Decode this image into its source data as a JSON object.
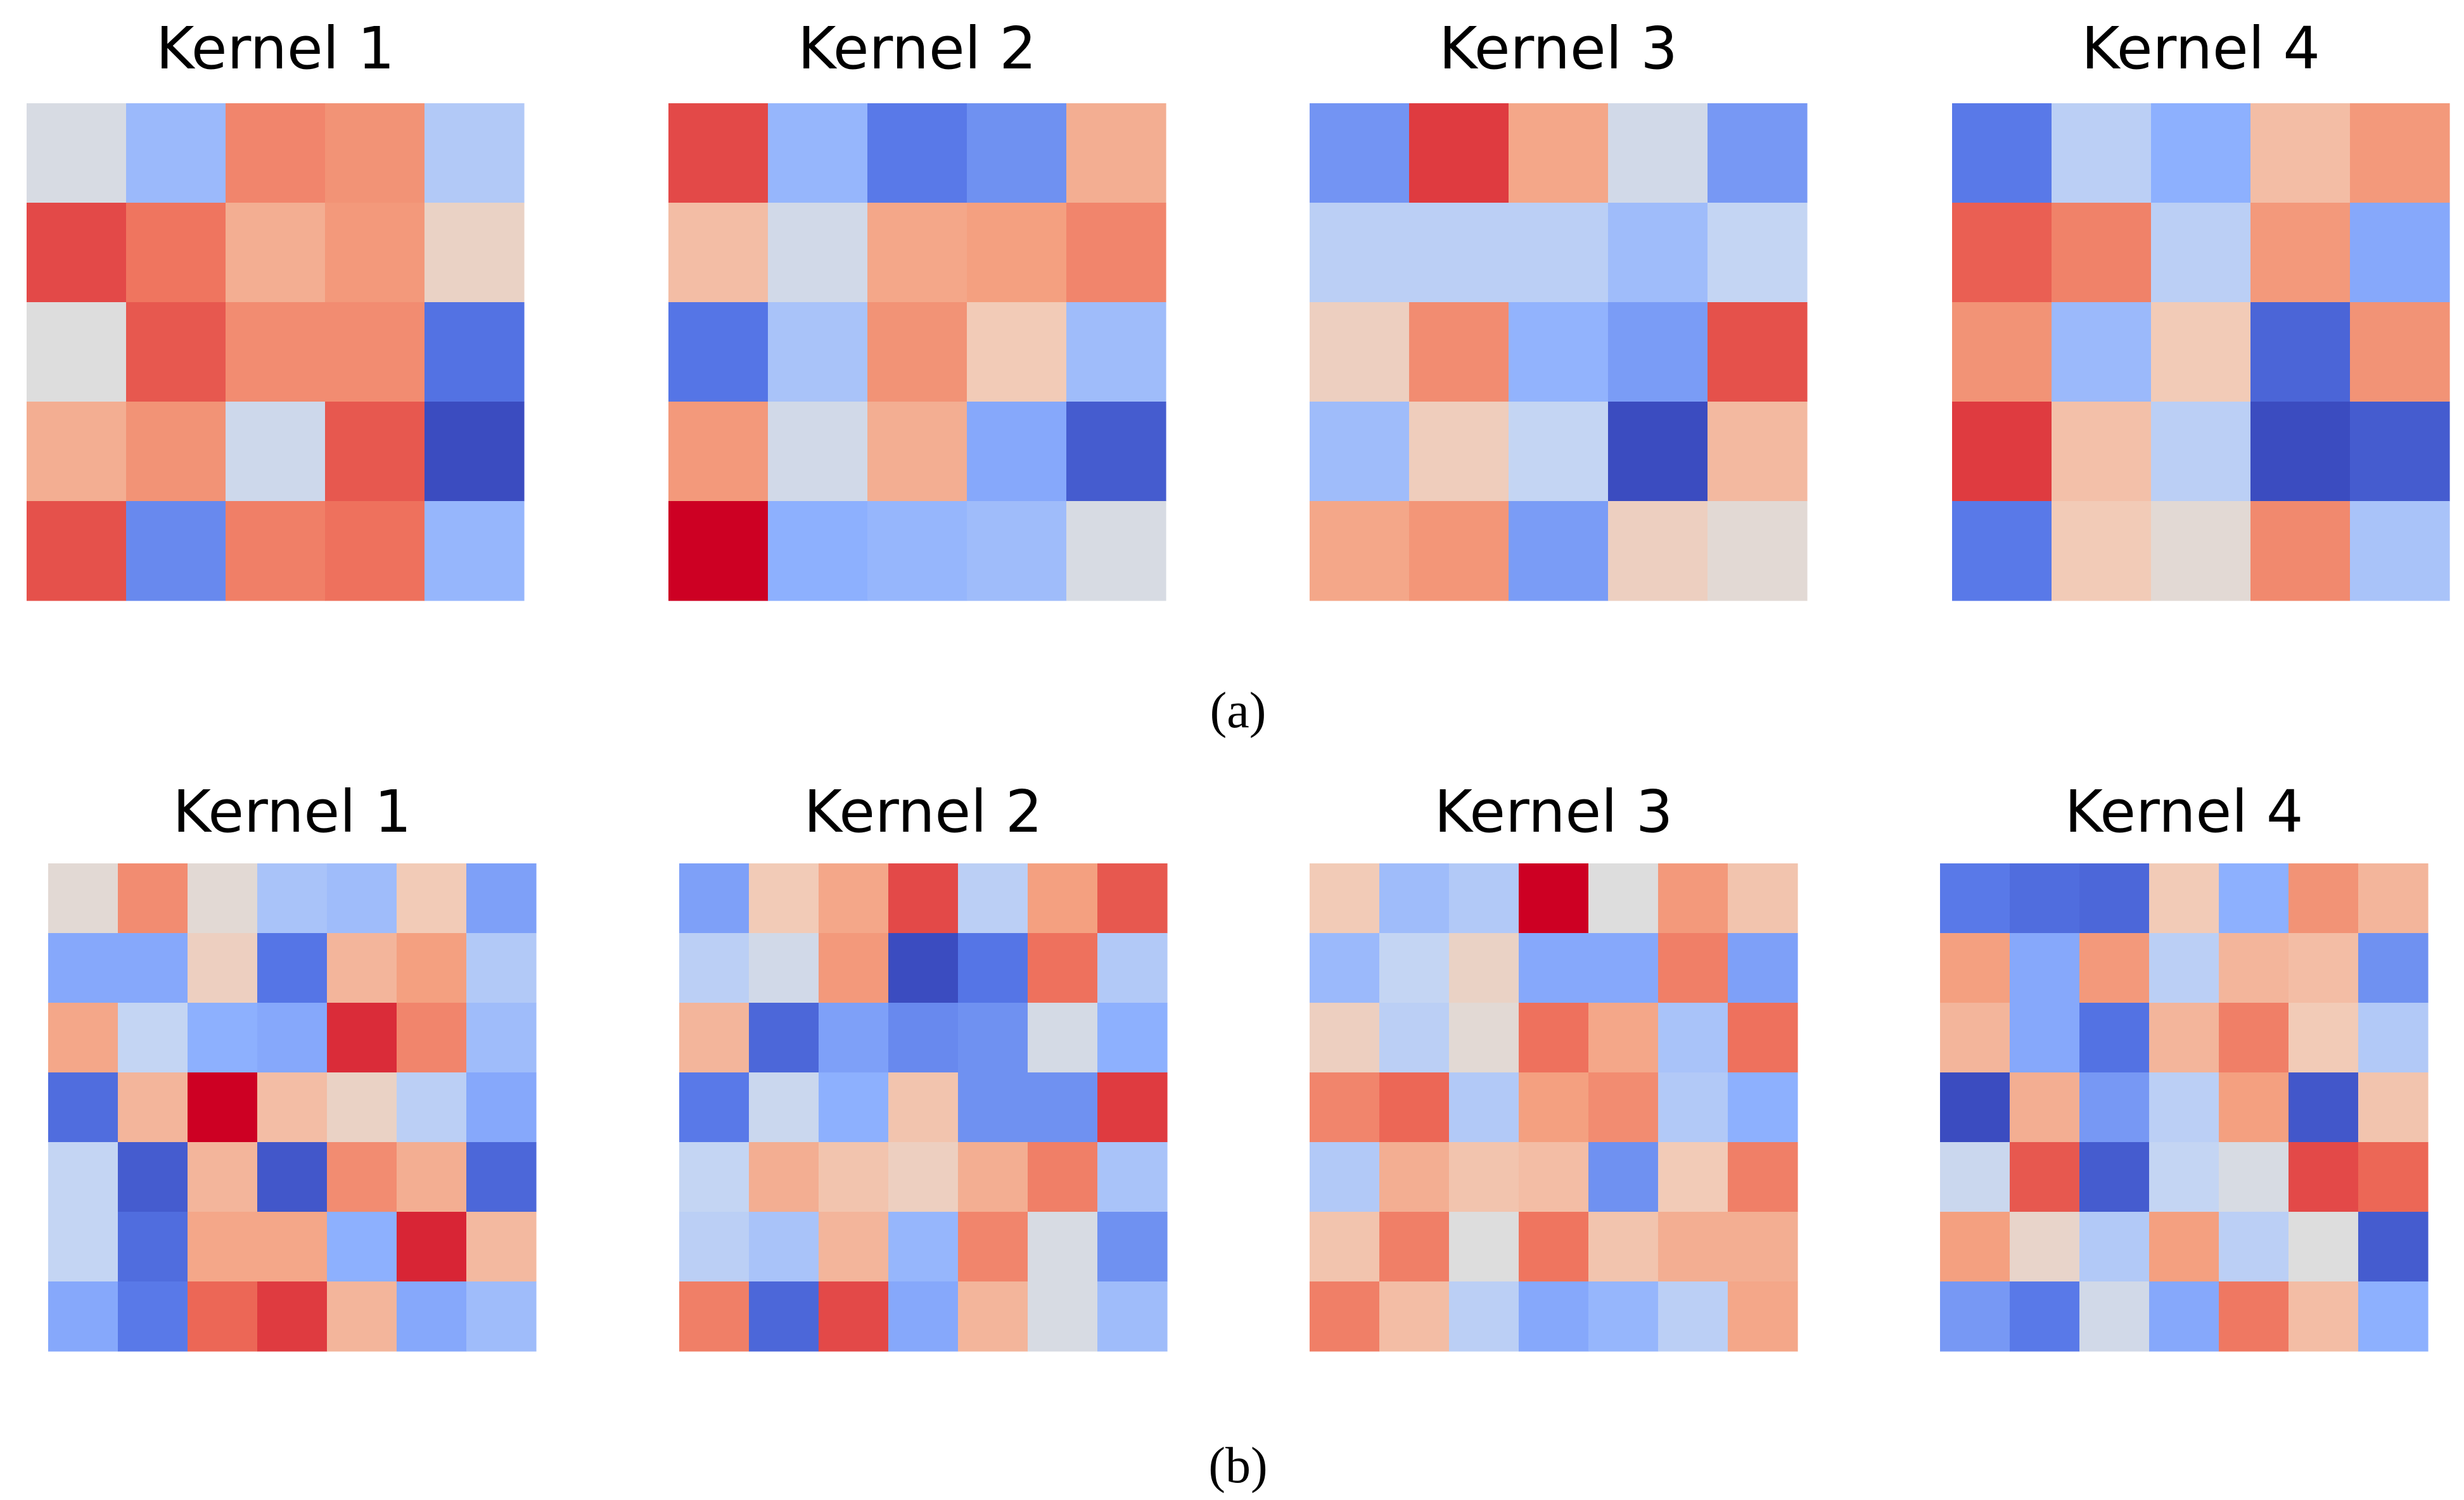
{
  "captions": [
    "(a)",
    "(b)"
  ],
  "chart_data": [
    {
      "type": "heatmap",
      "panel": "(a)",
      "grid_size": 5,
      "colormap": "coolwarm",
      "value_range": [
        0,
        1
      ],
      "kernels": [
        {
          "title": "Kernel 1",
          "values": [
            [
              0.48,
              0.33,
              0.78,
              0.74,
              0.38
            ],
            [
              0.9,
              0.83,
              0.66,
              0.72,
              0.55
            ],
            [
              0.5,
              0.88,
              0.76,
              0.76,
              0.14
            ],
            [
              0.66,
              0.74,
              0.45,
              0.88,
              0.0
            ],
            [
              0.89,
              0.2,
              0.8,
              0.84,
              0.32
            ]
          ]
        },
        {
          "title": "Kernel 2",
          "values": [
            [
              0.9,
              0.32,
              0.16,
              0.22,
              0.66
            ],
            [
              0.62,
              0.46,
              0.68,
              0.7,
              0.78
            ],
            [
              0.15,
              0.36,
              0.74,
              0.58,
              0.34
            ],
            [
              0.72,
              0.46,
              0.66,
              0.28,
              0.06
            ],
            [
              1.0,
              0.3,
              0.32,
              0.34,
              0.48
            ]
          ]
        },
        {
          "title": "Kernel 3",
          "values": [
            [
              0.23,
              0.92,
              0.68,
              0.46,
              0.24
            ],
            [
              0.4,
              0.4,
              0.4,
              0.34,
              0.42
            ],
            [
              0.56,
              0.76,
              0.31,
              0.25,
              0.89
            ],
            [
              0.34,
              0.57,
              0.42,
              0.0,
              0.63
            ],
            [
              0.68,
              0.73,
              0.25,
              0.56,
              0.52
            ]
          ]
        },
        {
          "title": "Kernel 4",
          "values": [
            [
              0.16,
              0.4,
              0.3,
              0.62,
              0.72
            ],
            [
              0.87,
              0.79,
              0.4,
              0.72,
              0.28
            ],
            [
              0.74,
              0.33,
              0.58,
              0.09,
              0.74
            ],
            [
              0.92,
              0.61,
              0.4,
              0.0,
              0.06
            ],
            [
              0.16,
              0.58,
              0.52,
              0.77,
              0.36
            ]
          ]
        }
      ]
    },
    {
      "type": "heatmap",
      "panel": "(b)",
      "grid_size": 7,
      "colormap": "coolwarm",
      "value_range": [
        0,
        1
      ],
      "kernels": [
        {
          "title": "Kernel 1",
          "values": [
            [
              0.52,
              0.76,
              0.52,
              0.36,
              0.34,
              0.58,
              0.26
            ],
            [
              0.28,
              0.28,
              0.56,
              0.15,
              0.64,
              0.7,
              0.38
            ],
            [
              0.68,
              0.42,
              0.3,
              0.28,
              0.94,
              0.78,
              0.34
            ],
            [
              0.12,
              0.64,
              1.0,
              0.62,
              0.55,
              0.4,
              0.28
            ],
            [
              0.42,
              0.06,
              0.64,
              0.04,
              0.76,
              0.66,
              0.1
            ],
            [
              0.42,
              0.12,
              0.68,
              0.68,
              0.3,
              0.95,
              0.63
            ],
            [
              0.28,
              0.16,
              0.86,
              0.92,
              0.64,
              0.28,
              0.34
            ]
          ]
        },
        {
          "title": "Kernel 2",
          "values": [
            [
              0.26,
              0.58,
              0.68,
              0.9,
              0.4,
              0.7,
              0.88
            ],
            [
              0.4,
              0.46,
              0.72,
              0.0,
              0.15,
              0.84,
              0.38
            ],
            [
              0.64,
              0.1,
              0.26,
              0.2,
              0.22,
              0.47,
              0.3
            ],
            [
              0.16,
              0.44,
              0.3,
              0.6,
              0.22,
              0.22,
              0.92
            ],
            [
              0.42,
              0.66,
              0.6,
              0.56,
              0.66,
              0.8,
              0.36
            ],
            [
              0.4,
              0.36,
              0.64,
              0.32,
              0.78,
              0.48,
              0.22
            ],
            [
              0.8,
              0.1,
              0.9,
              0.28,
              0.64,
              0.48,
              0.34
            ]
          ]
        },
        {
          "title": "Kernel 3",
          "values": [
            [
              0.58,
              0.34,
              0.38,
              1.0,
              0.5,
              0.72,
              0.6
            ],
            [
              0.33,
              0.42,
              0.55,
              0.28,
              0.28,
              0.8,
              0.26
            ],
            [
              0.56,
              0.4,
              0.52,
              0.84,
              0.68,
              0.36,
              0.84
            ],
            [
              0.78,
              0.86,
              0.38,
              0.7,
              0.76,
              0.38,
              0.3
            ],
            [
              0.38,
              0.66,
              0.6,
              0.62,
              0.22,
              0.58,
              0.8
            ],
            [
              0.6,
              0.8,
              0.5,
              0.83,
              0.6,
              0.66,
              0.66
            ],
            [
              0.8,
              0.62,
              0.4,
              0.28,
              0.32,
              0.4,
              0.68
            ]
          ]
        },
        {
          "title": "Kernel 4",
          "values": [
            [
              0.16,
              0.12,
              0.1,
              0.58,
              0.3,
              0.74,
              0.64
            ],
            [
              0.7,
              0.28,
              0.72,
              0.4,
              0.64,
              0.62,
              0.22
            ],
            [
              0.64,
              0.28,
              0.14,
              0.64,
              0.8,
              0.58,
              0.38
            ],
            [
              0.0,
              0.66,
              0.24,
              0.4,
              0.7,
              0.04,
              0.6
            ],
            [
              0.44,
              0.88,
              0.06,
              0.42,
              0.48,
              0.9,
              0.86
            ],
            [
              0.7,
              0.54,
              0.38,
              0.7,
              0.4,
              0.5,
              0.06
            ],
            [
              0.24,
              0.16,
              0.46,
              0.28,
              0.82,
              0.62,
              0.3
            ]
          ]
        }
      ]
    }
  ]
}
